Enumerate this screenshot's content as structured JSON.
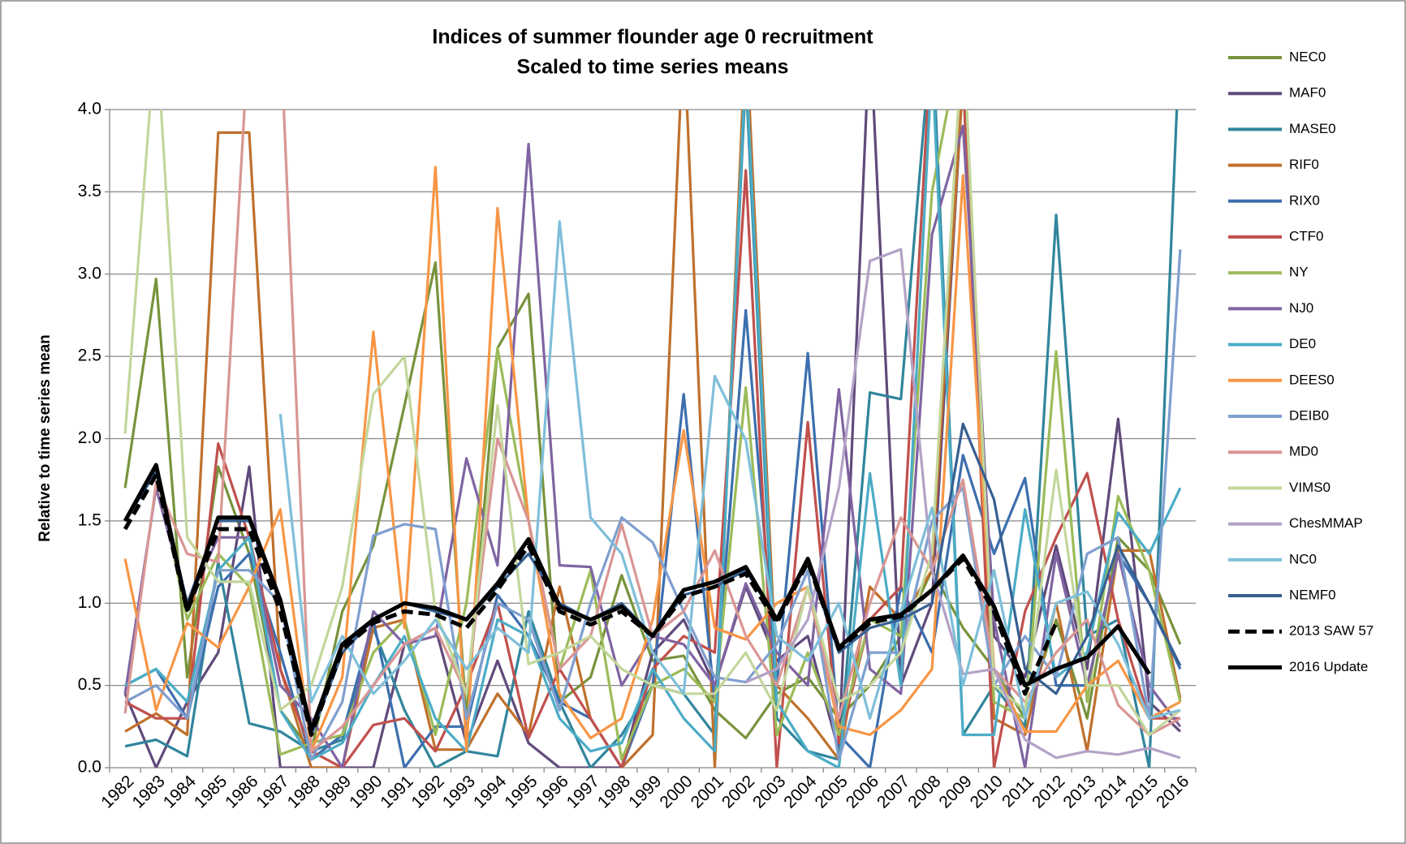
{
  "chart_data": {
    "type": "line",
    "title": "Indices of summer flounder age 0 recruitment",
    "subtitle": "Scaled to time series means",
    "y_label": "Relative to time series mean",
    "categories": [
      "1982",
      "1983",
      "1984",
      "1985",
      "1986",
      "1987",
      "1988",
      "1989",
      "1990",
      "1991",
      "1992",
      "1993",
      "1994",
      "1995",
      "1996",
      "1997",
      "1998",
      "1999",
      "2000",
      "2001",
      "2002",
      "2003",
      "2004",
      "2005",
      "2006",
      "2007",
      "2008",
      "2009",
      "2010",
      "2011",
      "2012",
      "2013",
      "2014",
      "2015",
      "2016"
    ],
    "ylim": [
      0,
      4
    ],
    "yticks": [
      {
        "value": 0,
        "label": "0.0"
      },
      {
        "value": 0.5,
        "label": "0.5"
      },
      {
        "value": 1,
        "label": "1.0"
      },
      {
        "value": 1.5,
        "label": "1.5"
      },
      {
        "value": 2,
        "label": "2.0"
      },
      {
        "value": 2.5,
        "label": "2.5"
      },
      {
        "value": 3,
        "label": "3.0"
      },
      {
        "value": 3.5,
        "label": "3.5"
      },
      {
        "value": 4,
        "label": "4.0"
      }
    ],
    "grid": true,
    "legend": "right",
    "series": [
      {
        "name": "NEC0",
        "color": "#77933c",
        "values": [
          1.7,
          2.97,
          0.55,
          1.83,
          1.3,
          0.35,
          0.1,
          0.95,
          1.35,
          2.2,
          3.07,
          0.3,
          2.55,
          2.88,
          0.4,
          0.55,
          1.17,
          0.65,
          0.68,
          0.35,
          0.18,
          0.45,
          0.55,
          0.3,
          0.5,
          0.8,
          1.2,
          0.85,
          0.6,
          0.3,
          0.9,
          0.3,
          1.4,
          1.2,
          0.75
        ]
      },
      {
        "name": "MAF0",
        "color": "#604a7b",
        "values": [
          0.45,
          0,
          0.4,
          0.7,
          1.83,
          0,
          0,
          0,
          0,
          0.75,
          0.85,
          0.15,
          0.65,
          0.15,
          0,
          0,
          0,
          0.7,
          0.9,
          0.5,
          1.1,
          0.65,
          0.8,
          0.1,
          4.5,
          0.5,
          1.0,
          4.2,
          0.8,
          0.55,
          1.35,
          0.6,
          2.12,
          0.4,
          0.22
        ]
      },
      {
        "name": "MASE0",
        "color": "#31859c",
        "values": [
          0.13,
          0.17,
          0.07,
          1.25,
          0.27,
          0.22,
          0.1,
          0.17,
          0.85,
          0.35,
          0,
          0.1,
          0.07,
          0.95,
          0.4,
          0,
          0.2,
          0.5,
          0.45,
          0.2,
          4.2,
          0.3,
          0.1,
          0.05,
          2.28,
          2.24,
          4.5,
          0.2,
          0.5,
          0.25,
          3.36,
          0.8,
          0.9,
          0,
          4.5
        ]
      },
      {
        "name": "RIF0",
        "color": "#c0702c",
        "values": [
          0.22,
          0.33,
          0.2,
          3.86,
          3.86,
          0.6,
          0,
          0,
          0.85,
          0.9,
          0.11,
          0.11,
          0.45,
          0.2,
          1.1,
          0.3,
          0,
          0.2,
          4.5,
          0,
          4.5,
          0.5,
          0.3,
          0.05,
          1.1,
          0.9,
          1.2,
          4.2,
          0.3,
          0.2,
          1.0,
          0.1,
          1.32,
          1.32,
          0.42
        ]
      },
      {
        "name": "RIX0",
        "color": "#3d6fae",
        "values": [
          0.5,
          0.6,
          0.3,
          1.1,
          1.3,
          0.7,
          0.05,
          0.2,
          0.9,
          0,
          0.25,
          0.25,
          1.05,
          0.8,
          0.4,
          0.3,
          0,
          0.5,
          2.27,
          0.4,
          2.78,
          0.5,
          2.52,
          0.2,
          0,
          1.1,
          0.7,
          1.9,
          1.3,
          1.76,
          0.5,
          0.5,
          1.3,
          1.0,
          0.6
        ]
      },
      {
        "name": "CTF0",
        "color": "#c0504d",
        "values": [
          0.4,
          0.3,
          0.3,
          1.97,
          1.4,
          0.6,
          0.1,
          0,
          0.26,
          0.3,
          0.1,
          0.5,
          1.0,
          0.18,
          0.6,
          0.3,
          0,
          0.6,
          0.8,
          0.7,
          3.63,
          0,
          2.1,
          0.15,
          0.9,
          1.1,
          4.5,
          4.2,
          0,
          0.95,
          1.4,
          1.79,
          0.9,
          0.3,
          0.3
        ]
      },
      {
        "name": "NY",
        "color": "#9bbb59",
        "values": [
          1.5,
          1.8,
          0.9,
          1.3,
          1.1,
          0.08,
          0.15,
          0.2,
          0.7,
          0.9,
          0.2,
          1.0,
          2.55,
          1.5,
          0.6,
          1.2,
          0.05,
          0.5,
          0.6,
          0.4,
          2.31,
          0.2,
          0.7,
          0.2,
          0.9,
          0.8,
          3.5,
          4.5,
          0.4,
          0.3,
          2.53,
          0.4,
          1.65,
          1.2,
          0.4
        ]
      },
      {
        "name": "NJ0",
        "color": "#8064a2",
        "values": [
          0.45,
          1.7,
          1.0,
          1.4,
          1.4,
          0.5,
          0.3,
          0,
          0.95,
          0.75,
          0.8,
          1.88,
          1.23,
          3.79,
          1.23,
          1.22,
          0.5,
          0.8,
          0.75,
          0.5,
          1.12,
          0.7,
          0.5,
          2.3,
          0.6,
          0.45,
          3.24,
          3.9,
          0.9,
          0,
          1.3,
          0.5,
          1.3,
          0.5,
          0.25
        ]
      },
      {
        "name": "DE0",
        "color": "#4bacc6",
        "values": [
          0.5,
          0.6,
          0.4,
          1.2,
          1.4,
          0.35,
          0.05,
          0.15,
          0.5,
          0.8,
          0.3,
          0.1,
          0.9,
          0.8,
          0.3,
          0.1,
          0.15,
          0.6,
          0.3,
          0.1,
          4.3,
          0.4,
          0.1,
          0,
          1.79,
          0.5,
          4.3,
          0.2,
          0.2,
          1.57,
          0.55,
          0.7,
          1.55,
          1.3,
          1.7
        ]
      },
      {
        "name": "DEES0",
        "color": "#f79646",
        "values": [
          1.27,
          0.35,
          0.88,
          0.73,
          1.1,
          1.57,
          0.1,
          0.55,
          2.65,
          0.85,
          3.65,
          0.1,
          3.4,
          1.5,
          0.45,
          0.18,
          0.3,
          0.9,
          2.05,
          0.85,
          0.78,
          1.0,
          1.1,
          0.25,
          0.2,
          0.35,
          0.6,
          3.6,
          0.6,
          0.22,
          0.22,
          0.5,
          0.65,
          0.3,
          0.4
        ]
      },
      {
        "name": "DEIB0",
        "color": "#7f9fcf",
        "values": [
          0.4,
          0.5,
          0.3,
          1.2,
          1.2,
          1.0,
          0.05,
          0.4,
          1.41,
          1.48,
          1.45,
          0.3,
          1.0,
          0.9,
          0.35,
          1.0,
          1.52,
          1.37,
          0.95,
          0.55,
          0.52,
          0.75,
          1.2,
          0.05,
          0.7,
          0.7,
          1.5,
          1.7,
          0.5,
          0.8,
          0.55,
          1.3,
          1.4,
          0.3,
          3.15
        ]
      },
      {
        "name": "MD0",
        "color": "#d99694",
        "values": [
          0.33,
          1.73,
          1.3,
          1.25,
          4.5,
          4.5,
          0.1,
          0.25,
          0.5,
          0.75,
          0.85,
          0.45,
          2.0,
          1.5,
          0.6,
          0.8,
          1.48,
          0.8,
          0.95,
          1.32,
          0.8,
          0.5,
          1.1,
          0.3,
          1.0,
          1.52,
          1.2,
          1.75,
          0.6,
          0.4,
          0.7,
          0.9,
          0.38,
          0.2,
          0.3
        ]
      },
      {
        "name": "VIMS0",
        "color": "#c3d69b",
        "values": [
          2.03,
          4.5,
          1.4,
          1.13,
          1.13,
          0.35,
          0.5,
          1.1,
          2.27,
          2.5,
          0.95,
          0.45,
          2.2,
          0.63,
          0.7,
          0.8,
          0.6,
          0.5,
          0.45,
          0.45,
          0.7,
          0.35,
          1.1,
          0.4,
          0.5,
          0.7,
          1.3,
          4.5,
          0.5,
          0.35,
          1.81,
          0.5,
          0.5,
          0.2,
          0.35
        ]
      },
      {
        "name": "ChesMMAP",
        "color": "#b3a2c7",
        "values": [
          null,
          null,
          null,
          null,
          null,
          null,
          null,
          null,
          null,
          null,
          null,
          null,
          null,
          null,
          null,
          null,
          null,
          null,
          null,
          null,
          0.52,
          0.6,
          0.9,
          1.7,
          3.08,
          3.15,
          1.2,
          0.57,
          0.6,
          0.17,
          0.06,
          0.1,
          0.08,
          0.12,
          0.06
        ]
      },
      {
        "name": "NC0",
        "color": "#7fbfd9",
        "values": [
          null,
          null,
          null,
          null,
          null,
          2.15,
          0.4,
          0.8,
          0.45,
          0.65,
          0.9,
          0.6,
          0.85,
          0.7,
          3.32,
          1.52,
          1.3,
          0.7,
          0.45,
          2.38,
          1.99,
          0.8,
          0.65,
          1.0,
          0.3,
          0.95,
          1.58,
          0.5,
          1.2,
          0.3,
          1.0,
          1.07,
          0.75,
          0.3,
          0.35
        ]
      },
      {
        "name": "NEMF0",
        "color": "#366092",
        "values": [
          1.5,
          1.8,
          1.0,
          1.5,
          1.5,
          1.0,
          0.2,
          0.7,
          0.9,
          1.0,
          0.95,
          0.9,
          1.1,
          1.3,
          1.0,
          0.9,
          1.0,
          0.8,
          1.05,
          1.1,
          1.2,
          0.9,
          1.25,
          0.7,
          0.85,
          0.9,
          1.0,
          2.09,
          1.63,
          0.6,
          0.45,
          0.8,
          1.35,
          1.0,
          0.62
        ]
      },
      {
        "name": "2013 SAW 57",
        "color": "#000000",
        "dashed": true,
        "bold": true,
        "values": [
          1.45,
          1.78,
          0.95,
          1.45,
          1.45,
          0.95,
          0.2,
          0.72,
          0.88,
          0.95,
          0.93,
          0.85,
          1.08,
          1.35,
          0.95,
          0.87,
          0.95,
          0.8,
          1.04,
          1.1,
          1.18,
          0.88,
          1.25,
          0.72,
          0.88,
          0.92,
          1.08,
          1.27,
          0.95,
          0.45,
          0.88,
          null,
          null,
          null,
          null
        ]
      },
      {
        "name": "2016 Update",
        "color": "#000000",
        "bold": true,
        "values": [
          1.5,
          1.84,
          0.96,
          1.52,
          1.52,
          1.02,
          0.23,
          0.75,
          0.9,
          1.0,
          0.97,
          0.9,
          1.12,
          1.39,
          0.98,
          0.9,
          0.98,
          0.8,
          1.08,
          1.13,
          1.22,
          0.9,
          1.27,
          0.73,
          0.9,
          0.93,
          1.08,
          1.29,
          0.98,
          0.5,
          0.6,
          0.67,
          0.86,
          0.57,
          null
        ]
      }
    ]
  }
}
